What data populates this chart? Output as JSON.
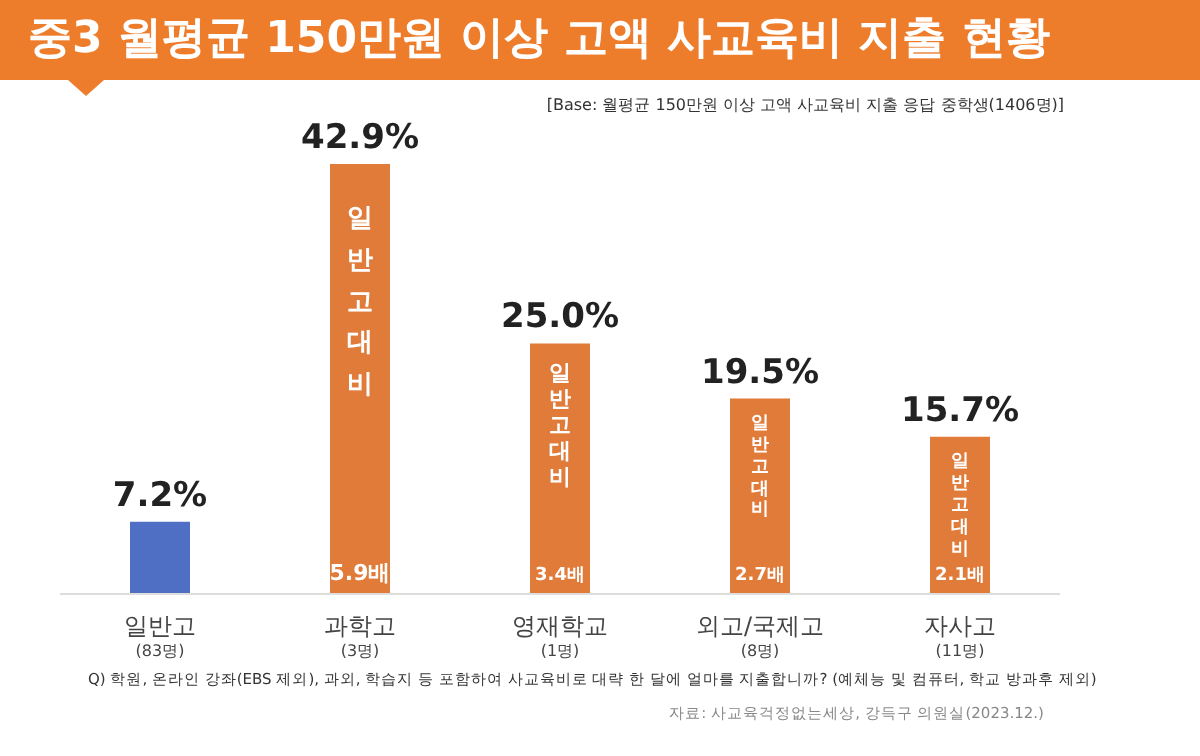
{
  "chart_data": {
    "type": "bar",
    "title": "중3 월평균 150만원 이상 고액 사교육비 지출 현황",
    "subtitle": "[Base: 월평균 150만원 이상 고액 사교육비 지출 응답 중학생(1406명)]",
    "categories": [
      "일반고\n(83명)",
      "과학고\n(3명)",
      "영재학교\n(1명)",
      "외고/국제고\n(8명)",
      "자사고\n(11명)"
    ],
    "values": [
      7.2,
      42.9,
      25.0,
      19.5,
      15.7
    ],
    "value_labels": [
      "7.2%",
      "42.9%",
      "25.0%",
      "19.5%",
      "15.7%"
    ],
    "colors": [
      "#4f6fc4",
      "#e07b39",
      "#e07b39",
      "#e07b39",
      "#e07b39"
    ],
    "annotations": [
      {
        "text": "일반고 대비",
        "x": "과학고\n(3명)",
        "y": 42.9
      },
      {
        "text": "5.9배",
        "x": "과학고\n(3명)",
        "y": 0
      },
      {
        "text": "일반고 대비",
        "x": "영재학교\n(1명)",
        "y": 25.0
      },
      {
        "text": "3.4배",
        "x": "영재학교\n(1명)",
        "y": 0
      },
      {
        "text": "일반고 대비",
        "x": "외고/국제고\n(8명)",
        "y": 19.5
      },
      {
        "text": "2.7배",
        "x": "외고/국제고\n(8명)",
        "y": 0
      },
      {
        "text": "일반고 대비",
        "x": "자사고\n(11명)",
        "y": 15.7
      },
      {
        "text": "2.1배",
        "x": "자사고\n(11명)",
        "y": 0
      },
      "Q) 학원, 온라인 강좌(EBS 제외), 과외, 학습지 등 포함하여 사교육비로 대략 한 달에 얼마를 지출합니까? (예체능 및 컴퓨터, 학교 방과후 제외)",
      "자료: 사교육걱정없는세상, 강득구 의원실(2023.12.)"
    ]
  }
}
